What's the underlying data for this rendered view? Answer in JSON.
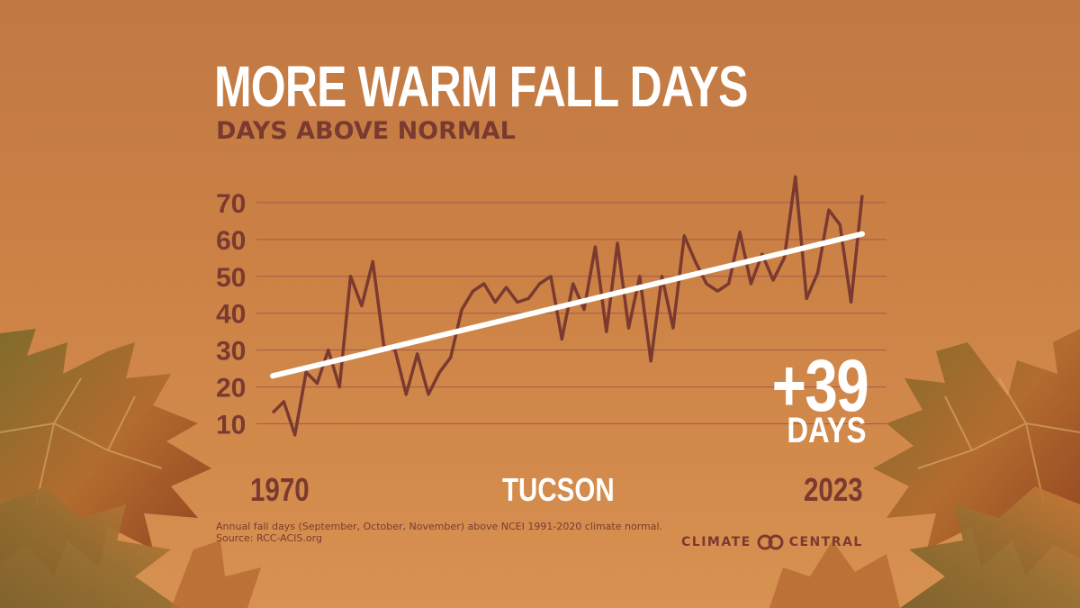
{
  "colors": {
    "background": "#cc8245",
    "title": "#ffffff",
    "accent": "#7b3a30",
    "line": "#7b3a30",
    "trend": "#ffffff",
    "gridline": "#a8584a"
  },
  "header": {
    "title": "MORE WARM FALL DAYS",
    "subtitle": "DAYS ABOVE NORMAL"
  },
  "chart_data": {
    "type": "line",
    "title": "MORE WARM FALL DAYS",
    "subtitle": "DAYS ABOVE NORMAL",
    "xlabel": "",
    "ylabel": "",
    "x": [
      1970,
      1971,
      1972,
      1973,
      1974,
      1975,
      1976,
      1977,
      1978,
      1979,
      1980,
      1981,
      1982,
      1983,
      1984,
      1985,
      1986,
      1987,
      1988,
      1989,
      1990,
      1991,
      1992,
      1993,
      1994,
      1995,
      1996,
      1997,
      1998,
      1999,
      2000,
      2001,
      2002,
      2003,
      2004,
      2005,
      2006,
      2007,
      2008,
      2009,
      2010,
      2011,
      2012,
      2013,
      2014,
      2015,
      2016,
      2017,
      2018,
      2019,
      2020,
      2021,
      2022,
      2023
    ],
    "series": [
      {
        "values": [
          13,
          16,
          7,
          24,
          21,
          30,
          20,
          50,
          42,
          54,
          31,
          30,
          18,
          29,
          18,
          24,
          28,
          41,
          46,
          48,
          43,
          47,
          43,
          44,
          48,
          50,
          33,
          48,
          41,
          58,
          35,
          59,
          36,
          50,
          27,
          50,
          36,
          61,
          54,
          48,
          46,
          48,
          62,
          48,
          56,
          49,
          55,
          77,
          44,
          51,
          68,
          64,
          43,
          72
        ]
      }
    ],
    "trend": {
      "start": {
        "x": 1970,
        "y": 23
      },
      "end": {
        "x": 2023,
        "y": 61.5
      }
    },
    "yticks": [
      10,
      20,
      30,
      40,
      50,
      60,
      70
    ],
    "ylim": [
      5,
      80
    ],
    "xlim": [
      1970,
      2023
    ],
    "grid": true,
    "x_start_label": "1970",
    "x_end_label": "2023",
    "location": "TUCSON",
    "change": {
      "value": "+39",
      "unit": "DAYS"
    }
  },
  "footer": {
    "note": "Annual fall days (September, October, November) above NCEI 1991-2020 climate normal.",
    "source": "Source: RCC-ACIS.org",
    "logo_left": "CLIMATE",
    "logo_right": "CENTRAL"
  }
}
